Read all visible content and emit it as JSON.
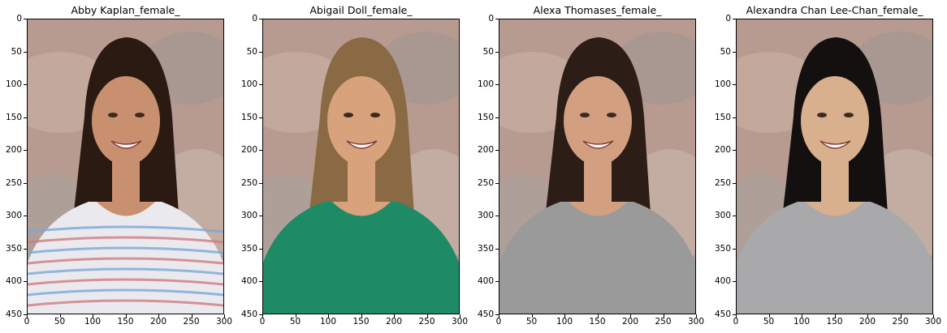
{
  "figure": {
    "panels": [
      {
        "title": "Abby Kaplan_female_",
        "photo_icon": "portrait-curly-dark-hair-striped-shirt",
        "colors": {
          "hair": "#2a1a12",
          "skin": "#c8906e",
          "shirt": "#e9e9ee",
          "stripe": "#7aa7d6",
          "stripe2": "#d07a82"
        }
      },
      {
        "title": "Abigail Doll_female_",
        "photo_icon": "portrait-long-blonde-hair-green-top",
        "colors": {
          "hair": "#8a6a44",
          "skin": "#d8a27c",
          "shirt": "#1f8a66",
          "stripe": "#1f8a66",
          "stripe2": "#1f8a66"
        }
      },
      {
        "title": "Alexa Thomases_female_",
        "photo_icon": "portrait-dark-hair-gray-tank-top",
        "colors": {
          "hair": "#2c1d16",
          "skin": "#d2a080",
          "shirt": "#9a9a9a",
          "stripe": "#9a9a9a",
          "stripe2": "#9a9a9a"
        }
      },
      {
        "title": "Alexandra Chan Lee-Chan_female_",
        "photo_icon": "portrait-long-black-hair-gray-top",
        "colors": {
          "hair": "#141010",
          "skin": "#d9b08e",
          "shirt": "#a9a9ab",
          "stripe": "#a9a9ab",
          "stripe2": "#a9a9ab"
        }
      }
    ],
    "x_ticks": [
      "0",
      "50",
      "100",
      "150",
      "200",
      "250",
      "300"
    ],
    "y_ticks": [
      "0",
      "50",
      "100",
      "150",
      "200",
      "250",
      "300",
      "350",
      "400",
      "450"
    ],
    "x_range": [
      0,
      300
    ],
    "y_range": [
      0,
      450
    ],
    "background_color": "#b79b90"
  }
}
